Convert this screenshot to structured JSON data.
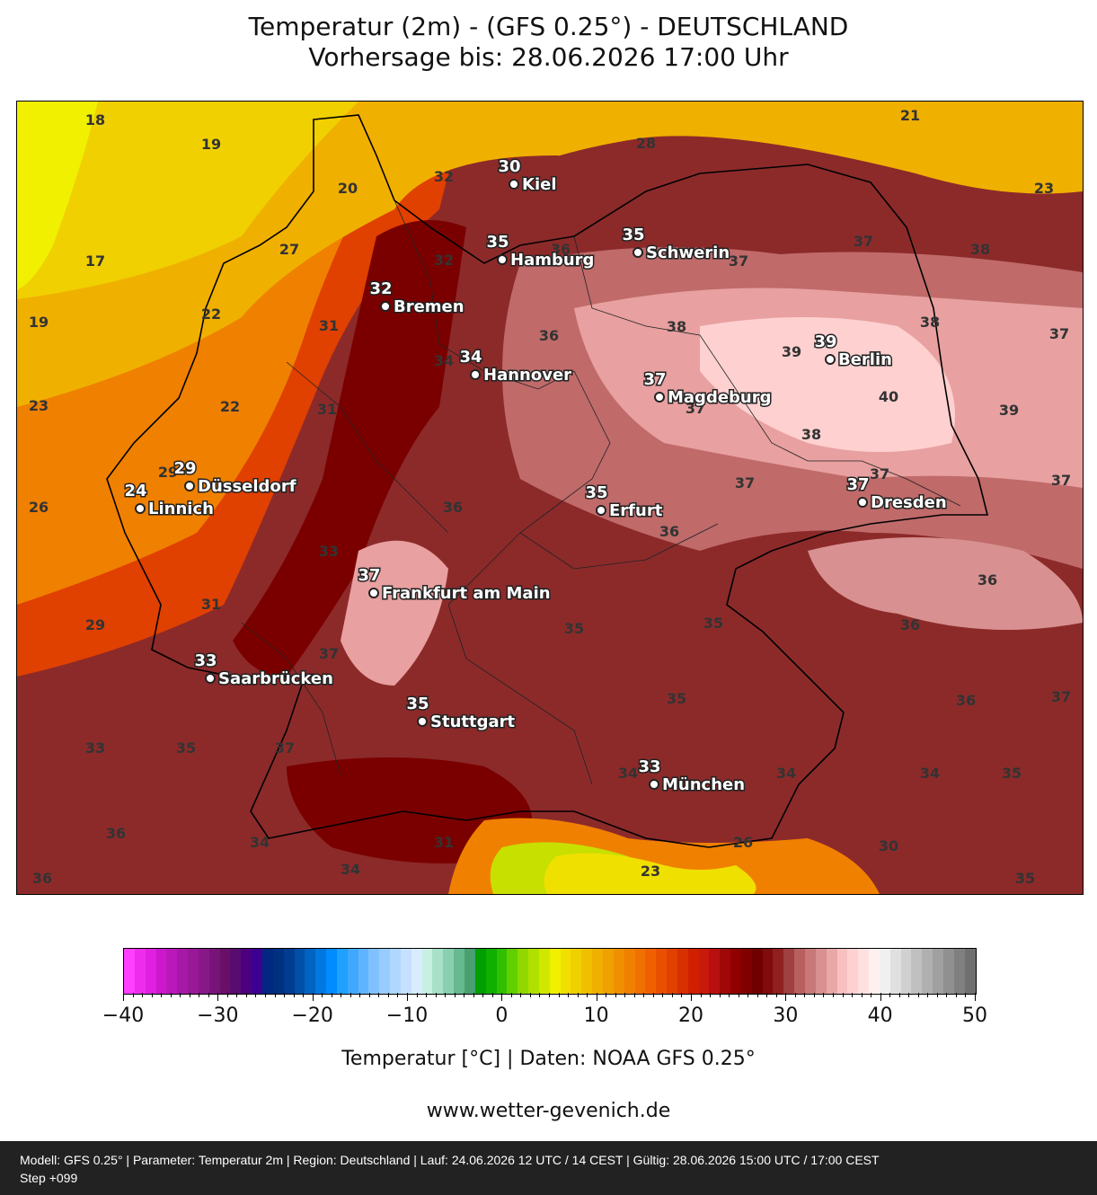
{
  "header": {
    "title_line1": "Temperatur (2m) - (GFS 0.25°) - DEUTSCHLAND",
    "title_line2": "Vorhersage bis: 28.06.2026 17:00 Uhr"
  },
  "map": {
    "cities": [
      {
        "name": "Kiel",
        "temp": "30"
      },
      {
        "name": "Hamburg",
        "temp": "35"
      },
      {
        "name": "Schwerin",
        "temp": "35"
      },
      {
        "name": "Bremen",
        "temp": "32"
      },
      {
        "name": "Hannover",
        "temp": "34"
      },
      {
        "name": "Berlin",
        "temp": "39"
      },
      {
        "name": "Magdeburg",
        "temp": "37"
      },
      {
        "name": "Düsseldorf",
        "temp": "29"
      },
      {
        "name": "Linnich",
        "temp": "24"
      },
      {
        "name": "Erfurt",
        "temp": "35"
      },
      {
        "name": "Dresden",
        "temp": "37"
      },
      {
        "name": "Frankfurt am Main",
        "temp": "37"
      },
      {
        "name": "Saarbrücken",
        "temp": "33"
      },
      {
        "name": "Stuttgart",
        "temp": "35"
      },
      {
        "name": "München",
        "temp": "33"
      }
    ],
    "contour_labels": [
      "18",
      "19",
      "21",
      "28",
      "20",
      "32",
      "23",
      "17",
      "27",
      "32",
      "36",
      "37",
      "37",
      "38",
      "22",
      "31",
      "38",
      "19",
      "36",
      "39",
      "38",
      "37",
      "34",
      "40",
      "23",
      "22",
      "31",
      "37",
      "39",
      "38",
      "29",
      "37",
      "37",
      "26",
      "36",
      "36",
      "33",
      "37",
      "31",
      "36",
      "29",
      "35",
      "35",
      "36",
      "37",
      "35",
      "36",
      "37",
      "33",
      "35",
      "37",
      "34",
      "34",
      "34",
      "35",
      "36",
      "34",
      "31",
      "26",
      "30",
      "34",
      "23",
      "36",
      "35"
    ],
    "colors": {
      "yellow": "#f0e000",
      "orange": "#f08a00",
      "red": "#c81a0a",
      "darkred": "#7a0000",
      "maroon": "#8c2a2a",
      "rose": "#c06a6a",
      "pink": "#e8a0a0",
      "lightpink": "#ffd0d0"
    }
  },
  "colorbar": {
    "ticks": [
      "−40",
      "−30",
      "−20",
      "−10",
      "0",
      "10",
      "20",
      "30",
      "40",
      "50"
    ],
    "label": "Temperatur [°C] | Daten: NOAA GFS 0.25°",
    "colors": [
      "#ff40ff",
      "#ee2cee",
      "#e020e0",
      "#cc18cc",
      "#bb18bb",
      "#a818a8",
      "#981898",
      "#881888",
      "#781478",
      "#681068",
      "#580c70",
      "#4c0080",
      "#3c0090",
      "#002880",
      "#003080",
      "#003c90",
      "#0050a8",
      "#0064c0",
      "#0078e0",
      "#008cff",
      "#20a0ff",
      "#40a8ff",
      "#60b4ff",
      "#80c0ff",
      "#98ccff",
      "#b0d8ff",
      "#c8e0ff",
      "#d8ecff",
      "#c8f0e0",
      "#a8e0c8",
      "#88d0b0",
      "#68b890",
      "#48a070",
      "#00a000",
      "#10b000",
      "#30c000",
      "#60d000",
      "#90d800",
      "#b0e000",
      "#d0e800",
      "#f0f000",
      "#f0e000",
      "#f0d000",
      "#f0c000",
      "#f0b000",
      "#f0a000",
      "#f09000",
      "#f08000",
      "#f07000",
      "#f06000",
      "#e85000",
      "#e04000",
      "#d83000",
      "#d02000",
      "#c81a0a",
      "#b81010",
      "#a00808",
      "#900000",
      "#800000",
      "#700000",
      "#800c0c",
      "#902020",
      "#a04040",
      "#b86060",
      "#c87878",
      "#d89090",
      "#e8a8a8",
      "#f8c0c0",
      "#ffd0d0",
      "#ffe0e0",
      "#fff0f0",
      "#f0f0f0",
      "#e0e0e0",
      "#d0d0d0",
      "#c0c0c0",
      "#b0b0b0",
      "#a0a0a0",
      "#909090",
      "#808080",
      "#707070"
    ]
  },
  "website": "www.wetter-gevenich.de",
  "footer": {
    "line1": "Modell: GFS 0.25° | Parameter: Temperatur 2m | Region: Deutschland | Lauf: 24.06.2026 12 UTC / 14 CEST | Gültig: 28.06.2026 15:00 UTC / 17:00 CEST",
    "line2": "Step +099"
  }
}
